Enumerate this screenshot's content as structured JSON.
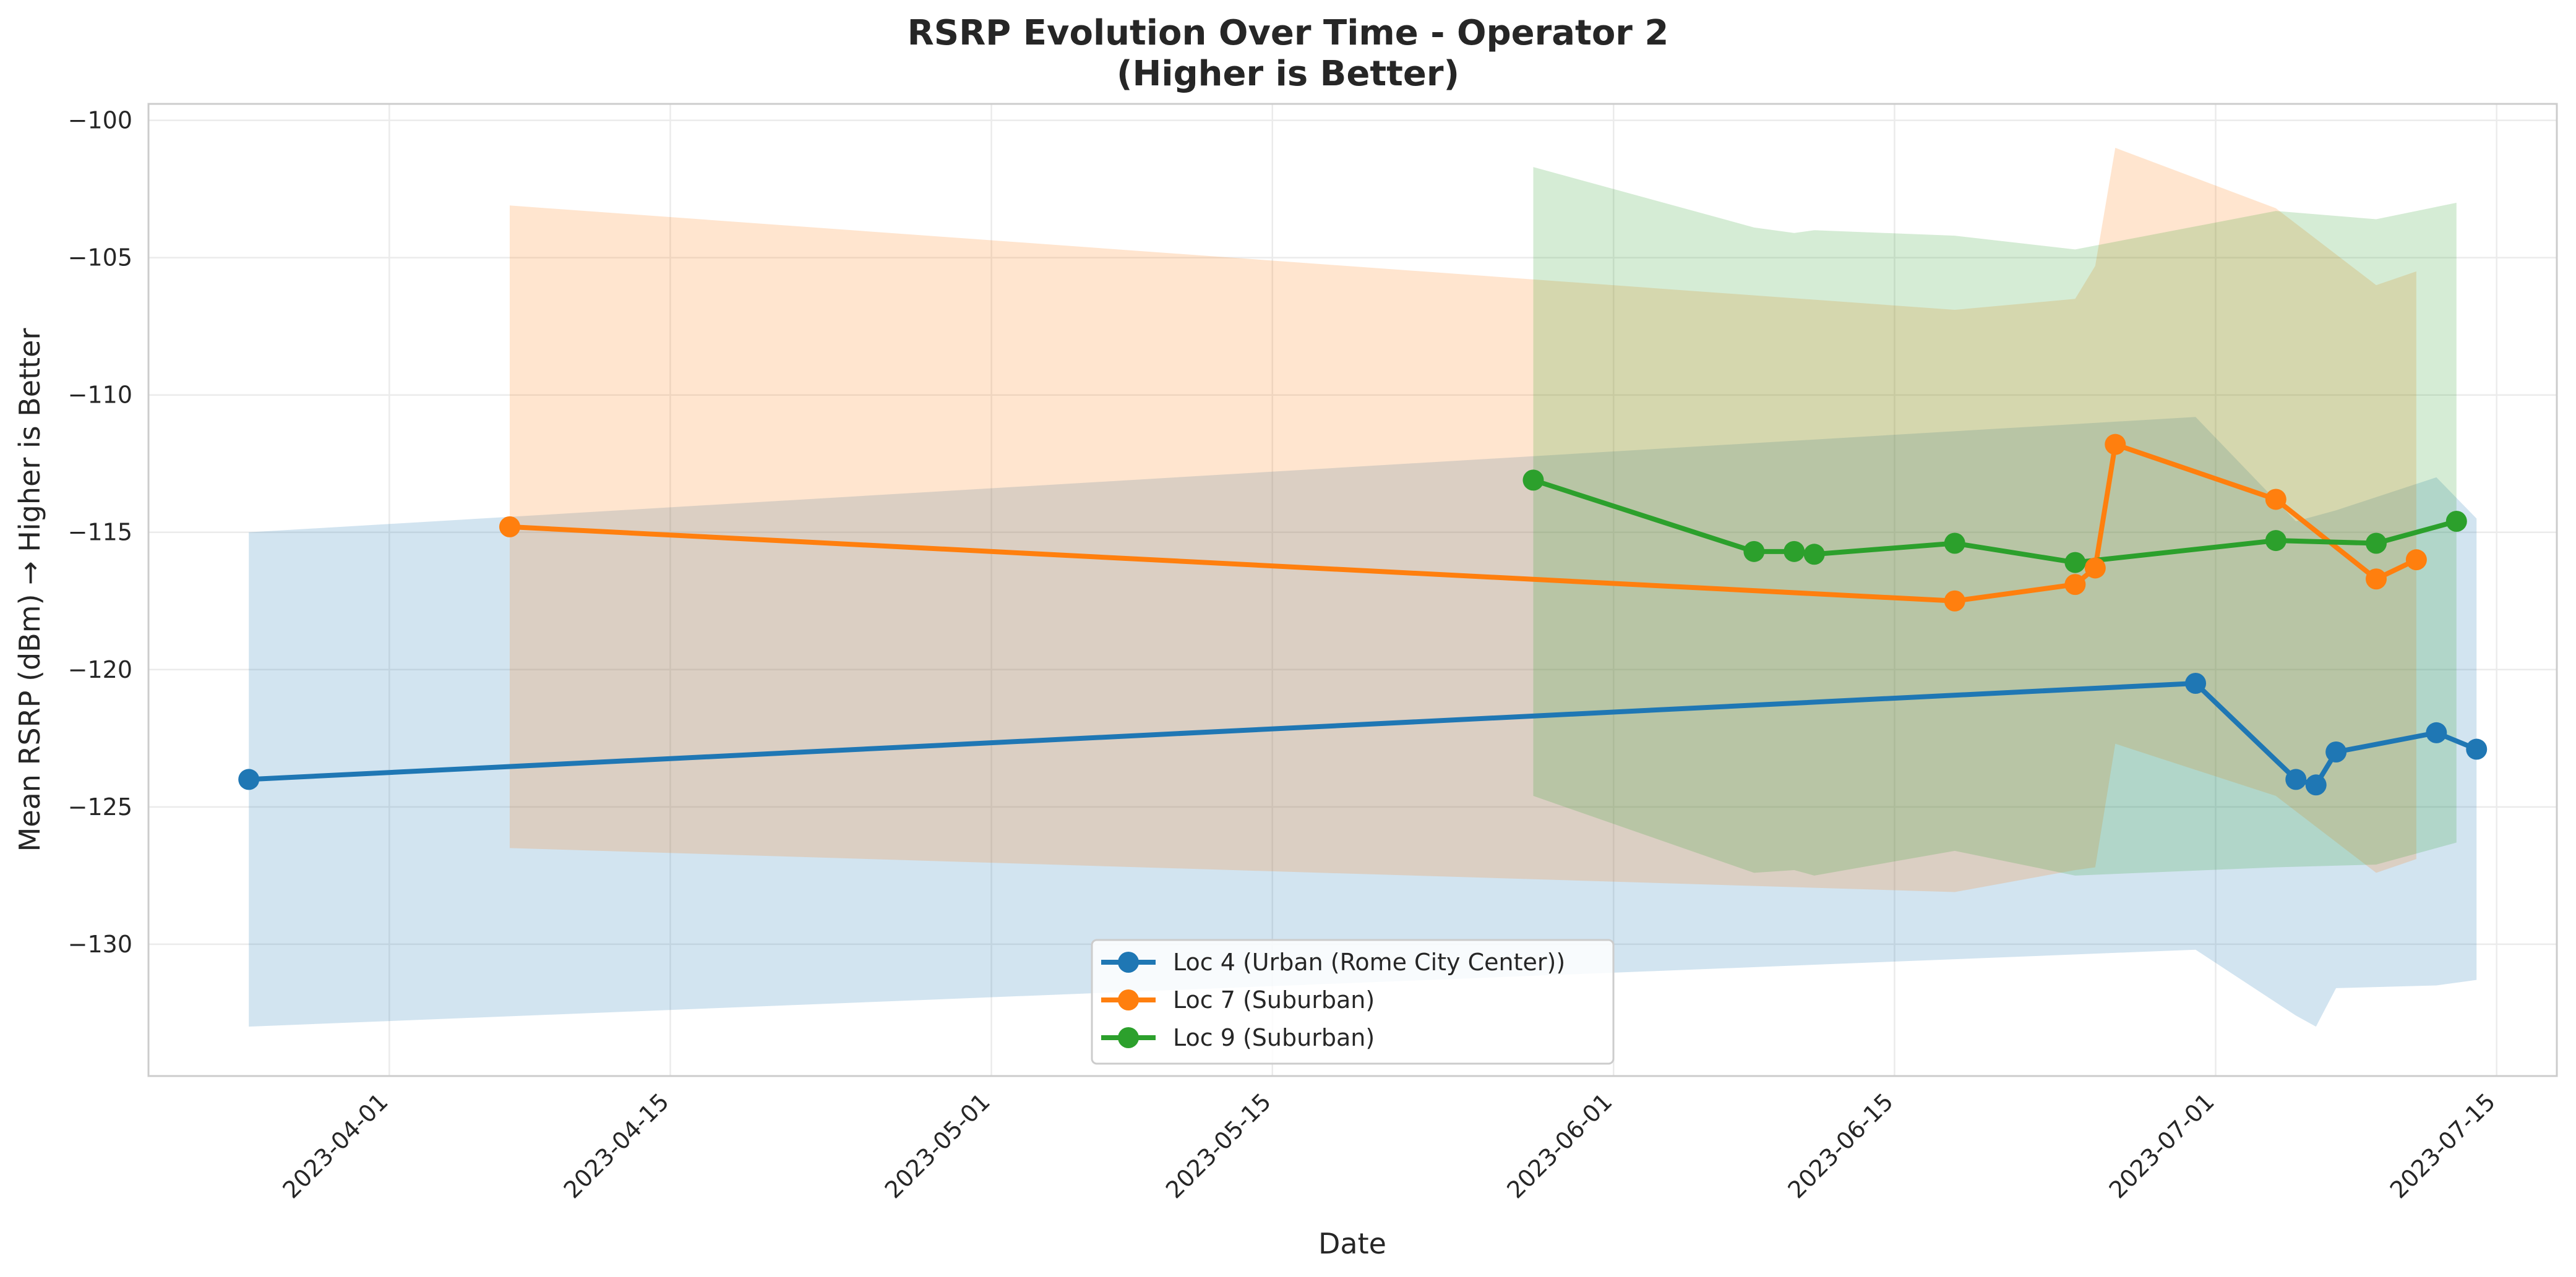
{
  "chart_data": {
    "type": "line",
    "title": "RSRP Evolution Over Time - Operator 2",
    "subtitle": "(Higher is Better)",
    "xlabel": "Date",
    "ylabel": "Mean RSRP (dBm) → Higher is Better",
    "ylim": [
      -134.8,
      -99.4
    ],
    "xlim": [
      "2023-03-20",
      "2023-07-18"
    ],
    "yticks": [
      -100,
      -105,
      -110,
      -115,
      -120,
      -125,
      -130
    ],
    "xticks": [
      "2023-04-01",
      "2023-04-15",
      "2023-05-01",
      "2023-05-15",
      "2023-06-01",
      "2023-06-15",
      "2023-07-01",
      "2023-07-15"
    ],
    "grid": true,
    "legend_position": "lower center",
    "series": [
      {
        "name": "Loc 4 (Urban (Rome City Center))",
        "color": "#1f77b4",
        "x": [
          "2023-03-25",
          "2023-06-30",
          "2023-07-05",
          "2023-07-06",
          "2023-07-07",
          "2023-07-12",
          "2023-07-14"
        ],
        "y": [
          -124.0,
          -120.5,
          -124.0,
          -124.2,
          -123.0,
          -122.3,
          -122.9
        ],
        "band_upper": [
          -115.0,
          -110.8,
          -114.6,
          -114.4,
          -114.2,
          -113.0,
          -114.5
        ],
        "band_lower": [
          -133.0,
          -130.2,
          -132.6,
          -133.0,
          -131.6,
          -131.5,
          -131.3
        ]
      },
      {
        "name": "Loc 7 (Suburban)",
        "color": "#ff7f0e",
        "x": [
          "2023-04-07",
          "2023-06-18",
          "2023-06-24",
          "2023-06-25",
          "2023-06-26",
          "2023-07-04",
          "2023-07-09",
          "2023-07-11"
        ],
        "y": [
          -114.8,
          -117.5,
          -116.9,
          -116.3,
          -111.8,
          -113.8,
          -116.7,
          -116.0
        ],
        "band_upper": [
          -103.1,
          -106.9,
          -106.5,
          -105.3,
          -101.0,
          -103.2,
          -106.0,
          -105.5
        ],
        "band_lower": [
          -126.5,
          -128.1,
          -127.3,
          -127.2,
          -122.7,
          -124.6,
          -127.4,
          -126.9
        ]
      },
      {
        "name": "Loc 9 (Suburban)",
        "color": "#2ca02c",
        "x": [
          "2023-05-28",
          "2023-06-08",
          "2023-06-10",
          "2023-06-11",
          "2023-06-18",
          "2023-06-24",
          "2023-07-04",
          "2023-07-09",
          "2023-07-13"
        ],
        "y": [
          -113.1,
          -115.7,
          -115.7,
          -115.8,
          -115.4,
          -116.1,
          -115.3,
          -115.4,
          -114.6
        ],
        "band_upper": [
          -101.7,
          -103.9,
          -104.1,
          -104.0,
          -104.2,
          -104.7,
          -103.3,
          -103.6,
          -103.0
        ],
        "band_lower": [
          -124.6,
          -127.4,
          -127.3,
          -127.5,
          -126.6,
          -127.5,
          -127.2,
          -127.1,
          -126.3
        ]
      }
    ]
  }
}
